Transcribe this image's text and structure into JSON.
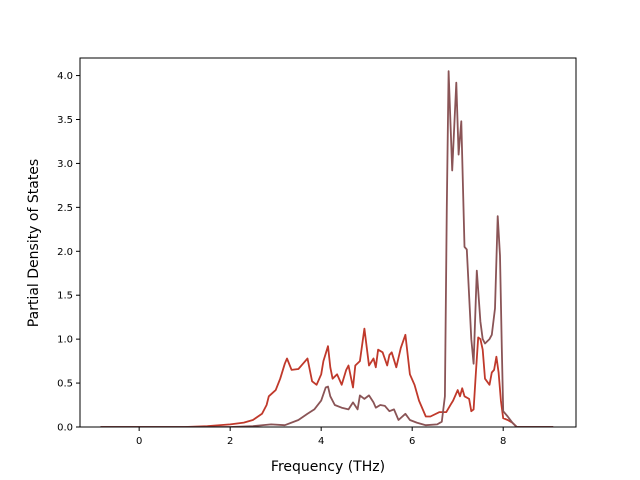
{
  "chart_data": {
    "type": "line",
    "title": "",
    "xlabel": "Frequency (THz)",
    "ylabel": "Partial Density of States",
    "xlim": [
      -1.3,
      9.6
    ],
    "ylim": [
      0.0,
      4.2
    ],
    "xticks": [
      0,
      2,
      4,
      6,
      8
    ],
    "xtick_labels": [
      "0",
      "2",
      "4",
      "6",
      "8"
    ],
    "yticks": [
      0.0,
      0.5,
      1.0,
      1.5,
      2.0,
      2.5,
      3.0,
      3.5,
      4.0
    ],
    "ytick_labels": [
      "0.0",
      "0.5",
      "1.0",
      "1.5",
      "2.0",
      "2.5",
      "3.0",
      "3.5",
      "4.0"
    ],
    "grid": false,
    "legend": "none",
    "series": [
      {
        "color": "#c0392b",
        "points": [
          [
            -0.85,
            0.0
          ],
          [
            1.0,
            0.0
          ],
          [
            1.5,
            0.01
          ],
          [
            2.0,
            0.03
          ],
          [
            2.3,
            0.05
          ],
          [
            2.5,
            0.08
          ],
          [
            2.7,
            0.15
          ],
          [
            2.8,
            0.25
          ],
          [
            2.85,
            0.35
          ],
          [
            3.0,
            0.42
          ],
          [
            3.1,
            0.55
          ],
          [
            3.2,
            0.72
          ],
          [
            3.25,
            0.78
          ],
          [
            3.35,
            0.65
          ],
          [
            3.5,
            0.66
          ],
          [
            3.6,
            0.72
          ],
          [
            3.7,
            0.78
          ],
          [
            3.8,
            0.52
          ],
          [
            3.9,
            0.48
          ],
          [
            4.0,
            0.6
          ],
          [
            4.05,
            0.75
          ],
          [
            4.15,
            0.92
          ],
          [
            4.2,
            0.68
          ],
          [
            4.25,
            0.55
          ],
          [
            4.35,
            0.6
          ],
          [
            4.45,
            0.48
          ],
          [
            4.55,
            0.65
          ],
          [
            4.6,
            0.7
          ],
          [
            4.7,
            0.45
          ],
          [
            4.75,
            0.7
          ],
          [
            4.85,
            0.75
          ],
          [
            4.95,
            1.12
          ],
          [
            5.05,
            0.7
          ],
          [
            5.15,
            0.78
          ],
          [
            5.2,
            0.68
          ],
          [
            5.25,
            0.88
          ],
          [
            5.35,
            0.85
          ],
          [
            5.45,
            0.7
          ],
          [
            5.5,
            0.82
          ],
          [
            5.55,
            0.85
          ],
          [
            5.65,
            0.68
          ],
          [
            5.75,
            0.9
          ],
          [
            5.85,
            1.05
          ],
          [
            5.95,
            0.6
          ],
          [
            6.05,
            0.48
          ],
          [
            6.15,
            0.3
          ],
          [
            6.3,
            0.12
          ],
          [
            6.4,
            0.12
          ],
          [
            6.6,
            0.17
          ],
          [
            6.75,
            0.17
          ],
          [
            6.85,
            0.26
          ],
          [
            6.9,
            0.3
          ],
          [
            7.0,
            0.42
          ],
          [
            7.05,
            0.35
          ],
          [
            7.1,
            0.44
          ],
          [
            7.15,
            0.35
          ],
          [
            7.25,
            0.32
          ],
          [
            7.3,
            0.18
          ],
          [
            7.35,
            0.2
          ],
          [
            7.4,
            0.62
          ],
          [
            7.45,
            1.02
          ],
          [
            7.5,
            1.0
          ],
          [
            7.55,
            0.88
          ],
          [
            7.6,
            0.55
          ],
          [
            7.7,
            0.48
          ],
          [
            7.75,
            0.62
          ],
          [
            7.8,
            0.65
          ],
          [
            7.85,
            0.8
          ],
          [
            7.9,
            0.62
          ],
          [
            7.95,
            0.3
          ],
          [
            8.0,
            0.1
          ],
          [
            8.1,
            0.08
          ],
          [
            8.2,
            0.05
          ],
          [
            8.3,
            0.0
          ],
          [
            9.1,
            0.0
          ]
        ]
      },
      {
        "color": "#8a5456",
        "points": [
          [
            -0.85,
            0.0
          ],
          [
            2.0,
            0.0
          ],
          [
            2.5,
            0.01
          ],
          [
            2.9,
            0.03
          ],
          [
            3.2,
            0.02
          ],
          [
            3.5,
            0.08
          ],
          [
            3.7,
            0.15
          ],
          [
            3.85,
            0.2
          ],
          [
            4.0,
            0.3
          ],
          [
            4.1,
            0.45
          ],
          [
            4.15,
            0.46
          ],
          [
            4.2,
            0.35
          ],
          [
            4.3,
            0.25
          ],
          [
            4.45,
            0.22
          ],
          [
            4.6,
            0.2
          ],
          [
            4.7,
            0.28
          ],
          [
            4.8,
            0.2
          ],
          [
            4.85,
            0.36
          ],
          [
            4.95,
            0.32
          ],
          [
            5.05,
            0.36
          ],
          [
            5.15,
            0.28
          ],
          [
            5.2,
            0.22
          ],
          [
            5.3,
            0.25
          ],
          [
            5.4,
            0.24
          ],
          [
            5.5,
            0.18
          ],
          [
            5.6,
            0.2
          ],
          [
            5.7,
            0.08
          ],
          [
            5.85,
            0.15
          ],
          [
            5.95,
            0.08
          ],
          [
            6.1,
            0.05
          ],
          [
            6.3,
            0.02
          ],
          [
            6.55,
            0.03
          ],
          [
            6.65,
            0.06
          ],
          [
            6.72,
            0.35
          ],
          [
            6.76,
            2.5
          ],
          [
            6.8,
            4.05
          ],
          [
            6.88,
            2.92
          ],
          [
            6.97,
            3.92
          ],
          [
            7.02,
            3.1
          ],
          [
            7.08,
            3.48
          ],
          [
            7.15,
            2.05
          ],
          [
            7.2,
            2.02
          ],
          [
            7.3,
            1.0
          ],
          [
            7.35,
            0.72
          ],
          [
            7.42,
            1.78
          ],
          [
            7.5,
            1.2
          ],
          [
            7.55,
            1.0
          ],
          [
            7.6,
            0.95
          ],
          [
            7.7,
            1.0
          ],
          [
            7.75,
            1.05
          ],
          [
            7.82,
            1.35
          ],
          [
            7.88,
            2.4
          ],
          [
            7.93,
            1.95
          ],
          [
            7.97,
            0.9
          ],
          [
            8.0,
            0.18
          ],
          [
            8.1,
            0.12
          ],
          [
            8.2,
            0.05
          ],
          [
            8.3,
            0.0
          ],
          [
            9.1,
            0.0
          ]
        ]
      }
    ]
  }
}
